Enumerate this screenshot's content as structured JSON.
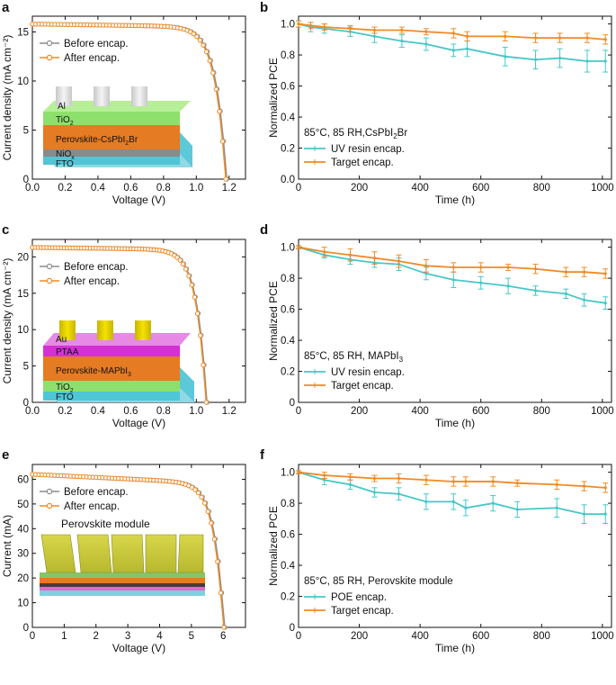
{
  "colors": {
    "before": "#8c8c8c",
    "after": "#f08a24",
    "uv": "#46c7c7",
    "target": "#f08a24"
  },
  "panels": [
    {
      "label": "a"
    },
    {
      "label": "b"
    },
    {
      "label": "c"
    },
    {
      "label": "d"
    },
    {
      "label": "e"
    },
    {
      "label": "f"
    }
  ],
  "chart_data": [
    {
      "panel": "a",
      "type": "line",
      "xlabel": "Voltage (V)",
      "ylabel": "Current density (mA cm⁻²)",
      "xlim": [
        0,
        1.3
      ],
      "ylim": [
        0,
        16.6
      ],
      "xticks": [
        0,
        0.2,
        0.4,
        0.6,
        0.8,
        1.0,
        1.2
      ],
      "xtick_labels": [
        "0.0",
        "0.2",
        "0.4",
        "0.6",
        "0.8",
        "1.0",
        "1.2"
      ],
      "yticks": [
        0,
        5,
        10,
        15
      ],
      "ytick_labels": [
        "0",
        "5",
        "10",
        "15"
      ],
      "jv": {
        "jsc": 15.8,
        "voc": 1.18,
        "slope": 1.2,
        "n": 0.065
      },
      "series": [
        {
          "name": "Before encap.",
          "key": "before",
          "shift": 0.006
        },
        {
          "name": "After encap.",
          "key": "after",
          "shift": 0
        }
      ],
      "legend_position": "top-right",
      "device_layers": [
        "Al",
        "TiO2",
        "Perovskite-CsPbI2Br",
        "NiOx",
        "FTO"
      ],
      "device_layer_text": {
        "al": "Al",
        "tio2": "TiO",
        "tio2_sub": "2",
        "pero": "Perovskite-CsPbI",
        "pero_sub": "2",
        "pero_end": "Br",
        "nio": "NiO",
        "nio_sub": "x",
        "fto": "FTO"
      }
    },
    {
      "panel": "b",
      "type": "line",
      "xlabel": "Time (h)",
      "ylabel": "Normalized PCE",
      "xlim": [
        0,
        1030
      ],
      "ylim": [
        0,
        1.05
      ],
      "xticks": [
        0,
        200,
        400,
        600,
        800,
        1000
      ],
      "xtick_labels": [
        "0",
        "200",
        "400",
        "600",
        "800",
        "1000"
      ],
      "yticks": [
        0,
        0.2,
        0.4,
        0.6,
        0.8,
        1.0
      ],
      "ytick_labels": [
        "0.0",
        "0.2",
        "0.4",
        "0.6",
        "0.8",
        "1.0"
      ],
      "condition": "85°C, 85 RH,CsPbI",
      "condition_sub": "2",
      "condition_end": "Br",
      "legend_position": "bottom-left",
      "series": [
        {
          "name": "UV resin encap.",
          "key": "uv",
          "x": [
            0,
            40,
            85,
            170,
            250,
            340,
            420,
            510,
            555,
            680,
            780,
            860,
            950,
            1010
          ],
          "y": [
            1.0,
            0.98,
            0.97,
            0.95,
            0.92,
            0.89,
            0.87,
            0.83,
            0.84,
            0.79,
            0.77,
            0.78,
            0.76,
            0.76
          ],
          "err": [
            0.02,
            0.03,
            0.03,
            0.03,
            0.04,
            0.04,
            0.04,
            0.04,
            0.05,
            0.06,
            0.06,
            0.06,
            0.07,
            0.07
          ]
        },
        {
          "name": "Target encap.",
          "key": "target",
          "x": [
            0,
            40,
            85,
            170,
            250,
            340,
            420,
            510,
            555,
            680,
            780,
            860,
            950,
            1010
          ],
          "y": [
            1.0,
            0.99,
            0.98,
            0.97,
            0.96,
            0.96,
            0.95,
            0.94,
            0.92,
            0.92,
            0.91,
            0.91,
            0.91,
            0.9
          ],
          "err": [
            0.02,
            0.02,
            0.02,
            0.02,
            0.02,
            0.02,
            0.02,
            0.03,
            0.03,
            0.03,
            0.03,
            0.03,
            0.03,
            0.03
          ]
        }
      ]
    },
    {
      "panel": "c",
      "type": "line",
      "xlabel": "Voltage (V)",
      "ylabel": "Current density (mA cm⁻²)",
      "xlim": [
        0,
        1.3
      ],
      "ylim": [
        0,
        22.4
      ],
      "xticks": [
        0,
        0.2,
        0.4,
        0.6,
        0.8,
        1.0,
        1.2
      ],
      "xtick_labels": [
        "0.0",
        "0.2",
        "0.4",
        "0.6",
        "0.8",
        "1.0",
        "1.2"
      ],
      "yticks": [
        0,
        5,
        10,
        15,
        20
      ],
      "ytick_labels": [
        "0",
        "5",
        "10",
        "15",
        "20"
      ],
      "jv": {
        "jsc": 21.3,
        "voc": 1.06,
        "slope": 0.95,
        "n": 0.06
      },
      "series": [
        {
          "name": "Before encap.",
          "key": "before",
          "shift": 0.005
        },
        {
          "name": "After encap.",
          "key": "after",
          "shift": 0
        }
      ],
      "legend_position": "top-right",
      "device_layers": [
        "Au",
        "PTAA",
        "Perovskite-MAPbI3",
        "TiO2",
        "FTO"
      ],
      "device_layer_text": {
        "au": "Au",
        "ptaa": "PTAA",
        "pero": "Perovskite-MAPbI",
        "pero_sub": "3",
        "tio2": "TiO",
        "tio2_sub": "2",
        "fto": "FTO"
      }
    },
    {
      "panel": "d",
      "type": "line",
      "xlabel": "Time (h)",
      "ylabel": "Normalized PCE",
      "xlim": [
        0,
        1030
      ],
      "ylim": [
        0,
        1.05
      ],
      "xticks": [
        0,
        200,
        400,
        600,
        800,
        1000
      ],
      "xtick_labels": [
        "0",
        "200",
        "400",
        "600",
        "800",
        "1000"
      ],
      "yticks": [
        0,
        0.2,
        0.4,
        0.6,
        0.8,
        1.0
      ],
      "ytick_labels": [
        "0",
        "0.2",
        "0.4",
        "0.6",
        "0.8",
        "1.0"
      ],
      "condition": "85°C, 85 RH, MAPbI",
      "condition_sub": "3",
      "condition_end": "",
      "legend_position": "bottom-left",
      "series": [
        {
          "name": "UV resin encap.",
          "key": "uv",
          "x": [
            0,
            85,
            170,
            250,
            330,
            420,
            510,
            600,
            690,
            780,
            880,
            940,
            1010
          ],
          "y": [
            1.0,
            0.95,
            0.92,
            0.9,
            0.89,
            0.83,
            0.79,
            0.77,
            0.75,
            0.72,
            0.7,
            0.66,
            0.64
          ],
          "err": [
            0.01,
            0.02,
            0.03,
            0.03,
            0.04,
            0.04,
            0.05,
            0.04,
            0.05,
            0.03,
            0.03,
            0.04,
            0.04
          ]
        },
        {
          "name": "Target encap.",
          "key": "target",
          "x": [
            0,
            85,
            170,
            250,
            330,
            420,
            510,
            600,
            690,
            780,
            880,
            940,
            1010
          ],
          "y": [
            1.0,
            0.97,
            0.95,
            0.93,
            0.91,
            0.88,
            0.87,
            0.87,
            0.87,
            0.86,
            0.84,
            0.84,
            0.83
          ],
          "err": [
            0.01,
            0.03,
            0.04,
            0.04,
            0.04,
            0.04,
            0.03,
            0.03,
            0.02,
            0.03,
            0.03,
            0.03,
            0.03
          ]
        }
      ]
    },
    {
      "panel": "e",
      "type": "line",
      "xlabel": "Voltage (V)",
      "ylabel": "Current (mA)",
      "xlim": [
        0,
        6.7
      ],
      "ylim": [
        0,
        66
      ],
      "xticks": [
        0,
        1,
        2,
        3,
        4,
        5,
        6
      ],
      "xtick_labels": [
        "0",
        "1",
        "2",
        "3",
        "4",
        "5",
        "6"
      ],
      "yticks": [
        0,
        10,
        20,
        30,
        40,
        50,
        60
      ],
      "ytick_labels": [
        "0",
        "10",
        "20",
        "30",
        "40",
        "50",
        "60"
      ],
      "jv": {
        "jsc": 62.0,
        "voc": 6.02,
        "slope": 4.0,
        "n": 0.3
      },
      "series": [
        {
          "name": "Before encap.",
          "key": "before",
          "shift": 0.03
        },
        {
          "name": "After encap.",
          "key": "after",
          "shift": 0
        }
      ],
      "legend_position": "top-right",
      "module_label": "Perovskite module"
    },
    {
      "panel": "f",
      "type": "line",
      "xlabel": "Time (h)",
      "ylabel": "Normalized PCE",
      "xlim": [
        0,
        1030
      ],
      "ylim": [
        0,
        1.05
      ],
      "xticks": [
        0,
        200,
        400,
        600,
        800,
        1000
      ],
      "xtick_labels": [
        "0",
        "200",
        "400",
        "600",
        "800",
        "1000"
      ],
      "yticks": [
        0,
        0.2,
        0.4,
        0.6,
        0.8,
        1.0
      ],
      "ytick_labels": [
        "0",
        "0.2",
        "0.4",
        "0.6",
        "0.8",
        "1.0"
      ],
      "condition": "85°C, 85 RH, Perovskite module",
      "condition_sub": "",
      "condition_end": "",
      "legend_position": "bottom-left",
      "series": [
        {
          "name": "POE encap.",
          "key": "uv",
          "x": [
            0,
            85,
            170,
            250,
            330,
            420,
            510,
            550,
            640,
            720,
            850,
            940,
            1010
          ],
          "y": [
            1.0,
            0.95,
            0.92,
            0.87,
            0.86,
            0.81,
            0.81,
            0.77,
            0.8,
            0.76,
            0.77,
            0.73,
            0.73
          ],
          "err": [
            0.01,
            0.03,
            0.03,
            0.03,
            0.04,
            0.05,
            0.05,
            0.05,
            0.05,
            0.05,
            0.06,
            0.06,
            0.06
          ]
        },
        {
          "name": "Target encap.",
          "key": "target",
          "x": [
            0,
            85,
            170,
            250,
            330,
            420,
            510,
            550,
            640,
            720,
            850,
            940,
            1010
          ],
          "y": [
            1.0,
            0.98,
            0.97,
            0.96,
            0.96,
            0.95,
            0.94,
            0.94,
            0.94,
            0.93,
            0.92,
            0.91,
            0.9
          ],
          "err": [
            0.01,
            0.02,
            0.02,
            0.02,
            0.03,
            0.03,
            0.03,
            0.03,
            0.03,
            0.02,
            0.03,
            0.03,
            0.03
          ]
        }
      ]
    }
  ]
}
